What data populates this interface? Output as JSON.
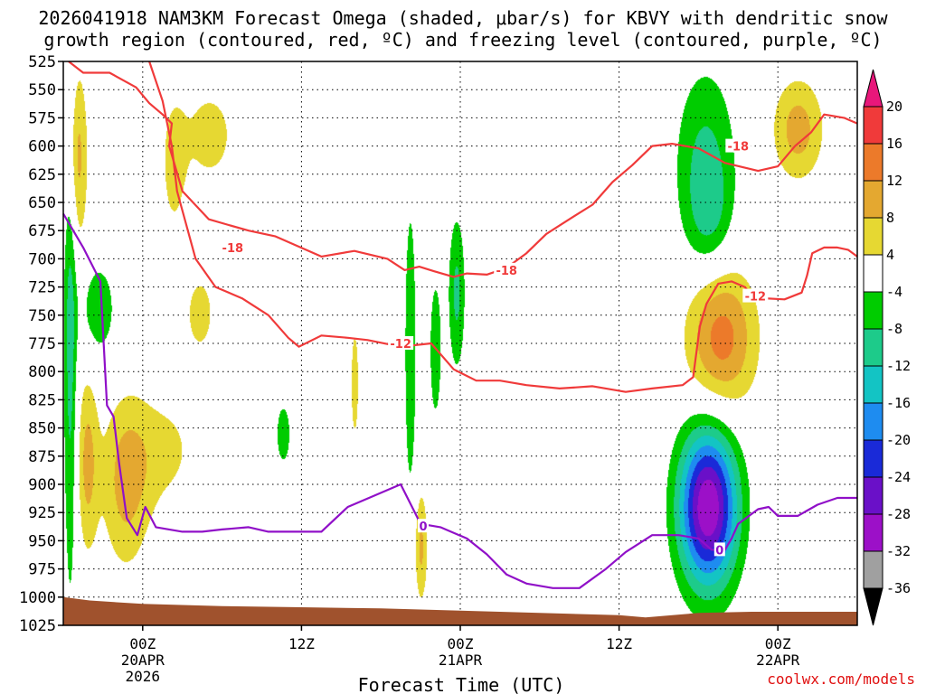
{
  "chart_data": {
    "type": "heatmap",
    "title_line1": "2026041918 NAM3KM Forecast Omega (shaded, μbar/s) for KBVY with dendritic snow",
    "title_line2": "growth region (contoured, red, ºC) and freezing level (contoured, purple, ºC)",
    "xlabel": "Forecast Time (UTC)",
    "credit": "coolwx.com/models",
    "y_levels": [
      "525",
      "550",
      "575",
      "600",
      "625",
      "650",
      "675",
      "700",
      "725",
      "750",
      "775",
      "800",
      "825",
      "850",
      "875",
      "900",
      "925",
      "950",
      "975",
      "1000",
      "1025"
    ],
    "ylim": [
      525,
      1025
    ],
    "x_ticks": [
      {
        "hour": 6,
        "line1": "00Z",
        "line2": "20APR",
        "line3": "2026"
      },
      {
        "hour": 18,
        "line1": "12Z",
        "line2": "",
        "line3": ""
      },
      {
        "hour": 30,
        "line1": "00Z",
        "line2": "21APR",
        "line3": ""
      },
      {
        "hour": 42,
        "line1": "12Z",
        "line2": "",
        "line3": ""
      },
      {
        "hour": 54,
        "line1": "00Z",
        "line2": "22APR",
        "line3": ""
      }
    ],
    "xlim": [
      0,
      60
    ],
    "colorbar": {
      "labels": [
        "20",
        "16",
        "12",
        "8",
        "4",
        "-4",
        "-8",
        "-12",
        "-16",
        "-20",
        "-24",
        "-28",
        "-32",
        "-36"
      ],
      "bins": [
        {
          "lo": 20,
          "hi": 24,
          "color": "#e8177a"
        },
        {
          "lo": 16,
          "hi": 20,
          "color": "#f03a3a"
        },
        {
          "lo": 12,
          "hi": 16,
          "color": "#ec7a2a"
        },
        {
          "lo": 8,
          "hi": 12,
          "color": "#e4a830"
        },
        {
          "lo": 4,
          "hi": 8,
          "color": "#e6d832"
        },
        {
          "lo": -4,
          "hi": 4,
          "color": "#ffffff"
        },
        {
          "lo": -8,
          "hi": -4,
          "color": "#00cc00"
        },
        {
          "lo": -12,
          "hi": -8,
          "color": "#1dcb8a"
        },
        {
          "lo": -16,
          "hi": -12,
          "color": "#13c4c4"
        },
        {
          "lo": -20,
          "hi": -16,
          "color": "#1e8cf0"
        },
        {
          "lo": -24,
          "hi": -20,
          "color": "#1a2ad8"
        },
        {
          "lo": -28,
          "hi": -24,
          "color": "#6a10c8"
        },
        {
          "lo": -32,
          "hi": -28,
          "color": "#9c10c8"
        },
        {
          "lo": -36,
          "hi": -32,
          "color": "#a0a0a0"
        },
        {
          "lo": -40,
          "hi": -36,
          "color": "#000000"
        }
      ]
    },
    "omega_features": [
      {
        "hour": 0.5,
        "p": 770,
        "hw": 0.5,
        "hp": 230,
        "peak": -10
      },
      {
        "hour": 1.0,
        "p": 610,
        "hw": 0.8,
        "hp": 80,
        "peak": 10
      },
      {
        "hour": 1.8,
        "p": 880,
        "hw": 0.8,
        "hp": 80,
        "peak": 9
      },
      {
        "hour": 2.6,
        "p": 745,
        "hw": 1.4,
        "hp": 45,
        "peak": -7
      },
      {
        "hour": 4.7,
        "p": 900,
        "hw": 1.8,
        "hp": 75,
        "peak": 9
      },
      {
        "hour": 8.3,
        "p": 620,
        "hw": 0.9,
        "hp": 60,
        "peak": 5
      },
      {
        "hour": 11.0,
        "p": 590,
        "hw": 2.8,
        "hp": 60,
        "peak": 5
      },
      {
        "hour": 10.3,
        "p": 748,
        "hw": 1.6,
        "hp": 50,
        "peak": 5
      },
      {
        "hour": 7.5,
        "p": 870,
        "hw": 3.0,
        "hp": 55,
        "peak": 5
      },
      {
        "hour": 16.6,
        "p": 855,
        "hw": 0.7,
        "hp": 35,
        "peak": -6
      },
      {
        "hour": 22.0,
        "p": 810,
        "hw": 0.5,
        "hp": 85,
        "peak": 5
      },
      {
        "hour": 26.2,
        "p": 780,
        "hw": 0.5,
        "hp": 150,
        "peak": -7
      },
      {
        "hour": 28.1,
        "p": 780,
        "hw": 0.5,
        "hp": 70,
        "peak": -7
      },
      {
        "hour": 29.7,
        "p": 730,
        "hw": 0.65,
        "hp": 70,
        "peak": -9
      },
      {
        "hour": 27.0,
        "p": 955,
        "hw": 0.5,
        "hp": 50,
        "peak": 9
      },
      {
        "hour": 48.7,
        "p": 920,
        "hw": 2.2,
        "hp": 70,
        "peak": -32
      },
      {
        "hour": 48.5,
        "p": 615,
        "hw": 2.3,
        "hp": 85,
        "peak": -9
      },
      {
        "hour": 48.8,
        "p": 665,
        "hw": 1.6,
        "hp": 48,
        "peak": -5
      },
      {
        "hour": 49.7,
        "p": 770,
        "hw": 2.6,
        "hp": 65,
        "peak": 14
      },
      {
        "hour": 55.5,
        "p": 585,
        "hw": 1.9,
        "hp": 45,
        "peak": 10
      }
    ],
    "contours": [
      {
        "name": "-18 C",
        "color": "#f03a3a",
        "label": "-18",
        "hours": [
          0.4,
          1.5,
          3.5,
          5.5,
          6.5,
          7.5,
          8.2,
          8.0,
          9.0,
          11.0,
          12.5,
          14.0,
          16.0,
          19.5,
          22.0,
          24.5,
          25.8,
          26.9,
          28.0,
          29.5,
          30.5,
          32.0,
          33.5,
          35.0,
          36.5,
          38.5,
          40.0,
          41.5,
          43.0,
          44.5,
          46.0,
          48.0,
          50.0,
          52.5,
          54.0,
          55.3,
          56.5,
          57.5,
          59.0,
          60.0
        ],
        "pressures": [
          525,
          535,
          535,
          548,
          562,
          572,
          580,
          600,
          640,
          665,
          670,
          675,
          680,
          698,
          693,
          700,
          710,
          707,
          711,
          716,
          713,
          714,
          708,
          695,
          678,
          663,
          652,
          632,
          617,
          600,
          598,
          602,
          615,
          622,
          618,
          600,
          588,
          572,
          575,
          580
        ]
      },
      {
        "name": "-12 C",
        "color": "#f03a3a",
        "label": "-12",
        "hours": [
          6.5,
          7.5,
          8.2,
          8.6,
          10.0,
          11.5,
          13.5,
          15.5,
          17.0,
          17.8,
          19.5,
          21.5,
          23.0,
          25.5,
          27.8,
          29.5,
          31.2,
          33.0,
          35.0,
          37.5,
          40.0,
          42.5,
          44.5,
          46.8,
          47.6,
          48.1,
          48.6,
          49.5,
          50.5,
          51.5,
          52.0,
          53.0,
          54.5,
          55.8,
          56.2,
          56.6,
          57.5,
          58.5,
          59.3,
          60.0
        ],
        "pressures": [
          525,
          560,
          600,
          640,
          700,
          725,
          735,
          750,
          770,
          778,
          768,
          770,
          772,
          778,
          775,
          798,
          808,
          808,
          812,
          815,
          813,
          818,
          815,
          812,
          805,
          760,
          740,
          722,
          720,
          725,
          732,
          735,
          736,
          730,
          715,
          695,
          690,
          690,
          692,
          698
        ]
      },
      {
        "name": "0 C freezing level",
        "color": "#9010c8",
        "label": "0",
        "hours": [
          0,
          1.5,
          2.8,
          3.3,
          3.8,
          4.2,
          4.8,
          5.6,
          6.2,
          7.0,
          9.0,
          10.5,
          12.0,
          14.0,
          15.5,
          17.5,
          19.5,
          21.5,
          23.5,
          25.5,
          27.0,
          28.5,
          30.5,
          32.0,
          33.5,
          35.0,
          37.0,
          39.0,
          41.0,
          42.5,
          44.5,
          46.5,
          48.0,
          49.0,
          50.0,
          50.5,
          51.0,
          52.5,
          53.3,
          54.0,
          55.5,
          57.0,
          58.5,
          60.0
        ],
        "pressures": [
          660,
          690,
          720,
          830,
          840,
          880,
          930,
          945,
          920,
          938,
          942,
          942,
          940,
          938,
          942,
          942,
          942,
          920,
          910,
          900,
          935,
          938,
          948,
          962,
          980,
          988,
          992,
          992,
          975,
          960,
          945,
          945,
          948,
          958,
          958,
          948,
          935,
          922,
          920,
          928,
          928,
          918,
          912,
          912
        ]
      }
    ],
    "contour_labels": [
      {
        "text": "-18",
        "hour": 12.8,
        "p": 690
      },
      {
        "text": "-18",
        "hour": 33.5,
        "p": 710
      },
      {
        "text": "-18",
        "hour": 51.0,
        "p": 600
      },
      {
        "text": "-12",
        "hour": 25.5,
        "p": 775
      },
      {
        "text": "-12",
        "hour": 52.3,
        "p": 733
      },
      {
        "text": "0",
        "hour": 27.2,
        "p": 937
      },
      {
        "text": "0",
        "hour": 49.6,
        "p": 958
      }
    ],
    "terrain": {
      "color": "#a0522d",
      "hours": [
        0,
        2,
        6,
        12,
        18,
        24,
        30,
        36,
        42,
        44,
        48,
        52,
        56,
        60
      ],
      "pressures": [
        1000,
        1003,
        1006,
        1008,
        1009,
        1010,
        1012,
        1014,
        1016,
        1018,
        1014,
        1013,
        1013,
        1013
      ]
    }
  }
}
